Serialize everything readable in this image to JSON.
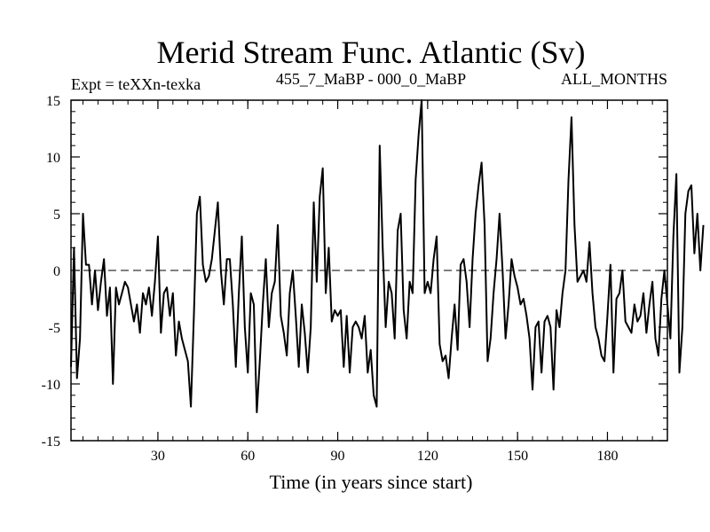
{
  "chart_data": {
    "type": "line",
    "title": "Merid Stream Func. Atlantic (Sv)",
    "subtitle_left": "Expt = teXXn-texka",
    "subtitle_center": "455_7_MaBP - 000_0_MaBP",
    "subtitle_right": "ALL_MONTHS",
    "xlabel": "Time (in years since start)",
    "ylabel": "",
    "xlim": [
      1,
      200
    ],
    "ylim": [
      -15,
      15
    ],
    "xticks": [
      30,
      60,
      90,
      120,
      150,
      180
    ],
    "yticks": [
      15,
      10,
      5,
      0,
      -5,
      -10,
      -15
    ],
    "reference_line": 0,
    "series": [
      {
        "name": "Merid Stream Func. Atlantic",
        "x_start": 1,
        "x_step": 1,
        "values": [
          -8.5,
          2,
          -9.5,
          -6,
          5,
          0.5,
          0.5,
          -3,
          0,
          -3.5,
          -1,
          1,
          -4,
          -1.5,
          -10,
          -1.5,
          -3,
          -2,
          -1,
          -1.5,
          -3,
          -4.5,
          -3,
          -5.5,
          -2,
          -3,
          -1.5,
          -4,
          -1,
          3,
          -5.5,
          -2,
          -1.5,
          -4,
          -2,
          -7.5,
          -4.5,
          -6,
          -7,
          -8,
          -12,
          -4,
          5,
          6.5,
          0.5,
          -1,
          -0.5,
          1,
          3.5,
          6,
          0,
          -3,
          1,
          1,
          -3,
          -8.5,
          -2,
          3,
          -5,
          -9,
          -2,
          -3,
          -12.5,
          -8,
          -3,
          1,
          -5,
          -2,
          -1,
          4,
          -4,
          -5.5,
          -7.5,
          -2,
          0,
          -4,
          -8.5,
          -3,
          -5.5,
          -9,
          -5,
          6,
          -1,
          6.5,
          9,
          -2,
          2,
          -4.5,
          -3.5,
          -4,
          -3.5,
          -8.5,
          -4,
          -9,
          -5,
          -4.5,
          -5,
          -6,
          -4,
          -9,
          -7,
          -11,
          -12,
          11,
          2,
          -5,
          -1,
          -2,
          -6,
          3.5,
          5,
          -3.5,
          -6,
          -1,
          -2,
          8,
          12,
          15,
          -2,
          -1,
          -2,
          1,
          3,
          -6.5,
          -8,
          -7.5,
          -9.5,
          -6,
          -3,
          -7,
          0.5,
          1,
          -1,
          -5,
          1,
          5,
          7.5,
          9.5,
          4,
          -8,
          -6,
          -2,
          1,
          5,
          0,
          -6,
          -3,
          1,
          -0.5,
          -1.5,
          -3,
          -2.5,
          -4,
          -6,
          -10.5,
          -5,
          -4.5,
          -9,
          -4.5,
          -4,
          -5,
          -10.5,
          -3.5,
          -5,
          -2,
          0,
          8,
          13.5,
          4,
          -1,
          -0.5,
          0,
          -1,
          2.5,
          -2,
          -5,
          -6,
          -7.5,
          -8,
          -4,
          0.5,
          -9,
          -2.5,
          -2,
          0,
          -4.5,
          -5,
          -5.5,
          -3,
          -4.5,
          -4,
          -2,
          -5.5,
          -3,
          -1,
          -6,
          -7.5,
          -2.5,
          0,
          -3,
          -6,
          3,
          8.5,
          -9,
          -5,
          5,
          7,
          7.5,
          1.5,
          5,
          0,
          4
        ]
      }
    ]
  }
}
